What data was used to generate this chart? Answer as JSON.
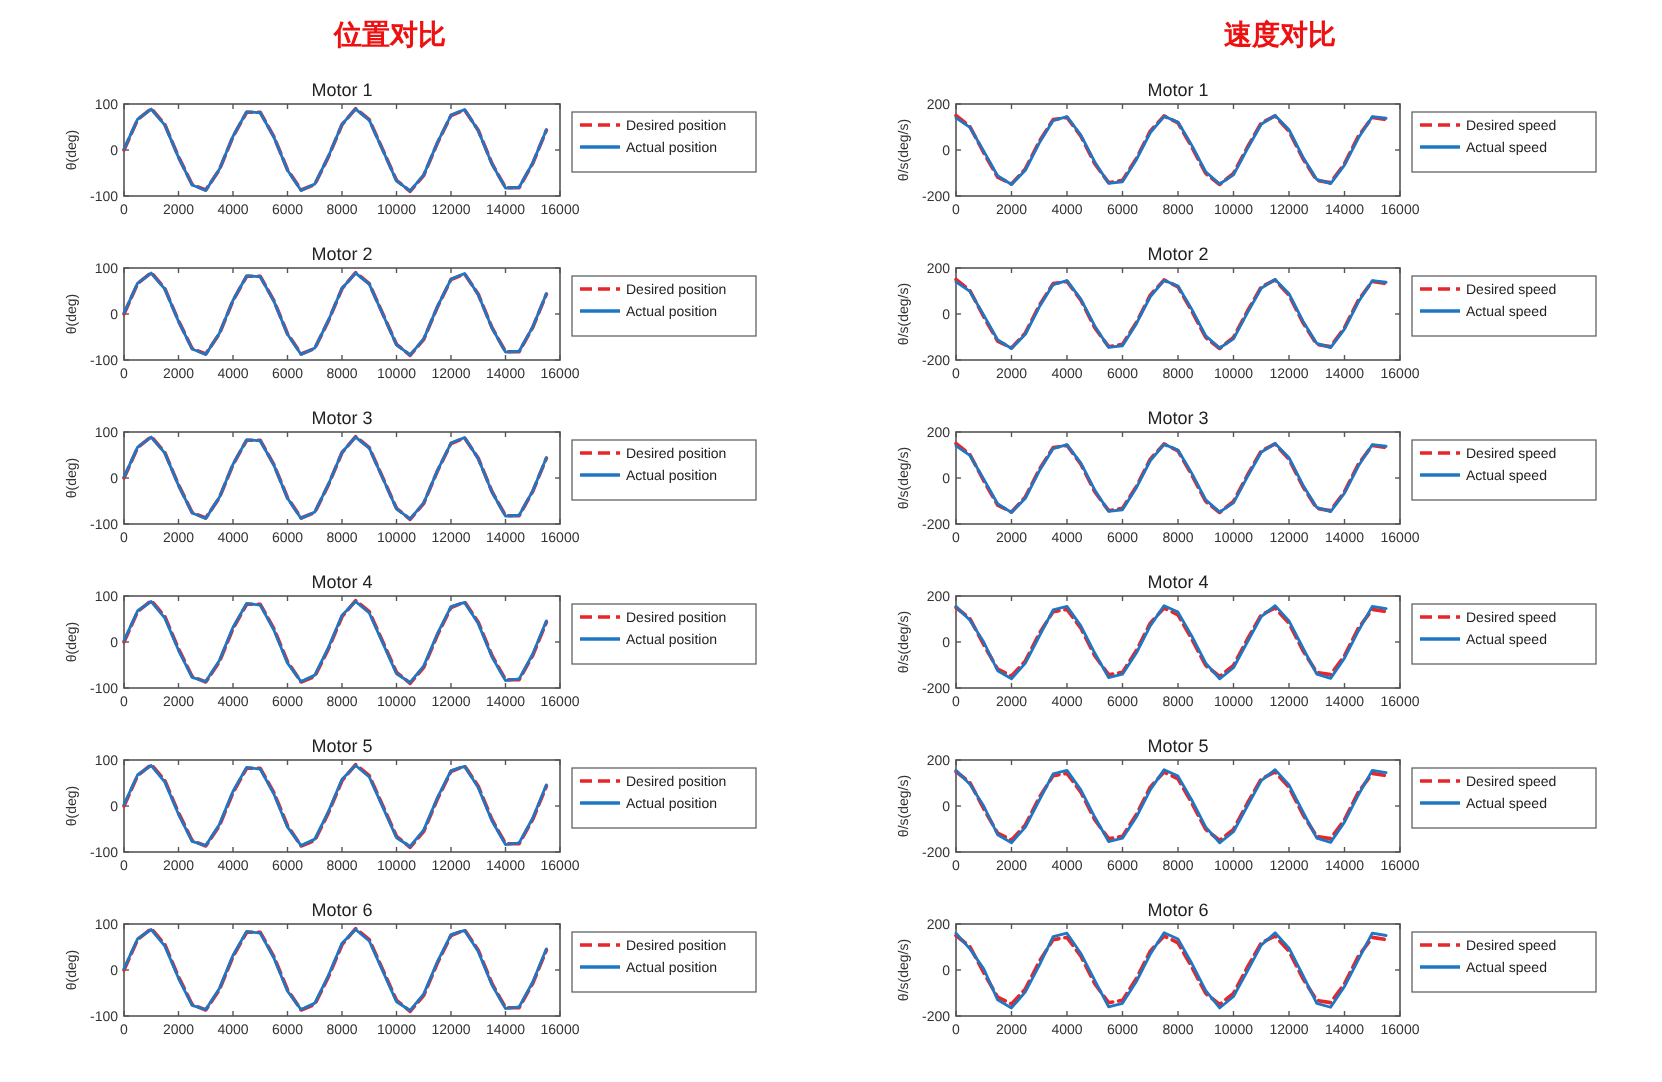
{
  "chart_data": [
    {
      "type": "other",
      "title": "位置对比"
    },
    {
      "type": "other",
      "title": "速度对比"
    },
    {
      "type": "line",
      "title": "Motor 1",
      "ylabel": "θ(deg)",
      "x": [
        0,
        500,
        1000,
        1500,
        2000,
        2500,
        3000,
        3500,
        4000,
        4500,
        5000,
        5500,
        6000,
        6500,
        7000,
        7500,
        8000,
        8500,
        9000,
        9500,
        10000,
        10500,
        11000,
        11500,
        12000,
        12500,
        13000,
        13500,
        14000,
        14500,
        15000,
        15500
      ],
      "xlim": [
        0,
        16000
      ],
      "xticks": [
        0,
        2000,
        4000,
        6000,
        8000,
        10000,
        12000,
        14000,
        16000
      ],
      "ylim": [
        -100,
        100
      ],
      "yticks": [
        -100,
        0,
        100
      ],
      "legend": "right",
      "series": [
        {
          "name": "Desired position",
          "color": "#e8262a",
          "line_style": "dashed",
          "values": [
            0,
            66,
            90,
            55,
            -15,
            -75,
            -87,
            -43,
            29,
            82,
            82,
            29,
            -43,
            -87,
            -75,
            -15,
            55,
            90,
            66,
            0,
            -66,
            -90,
            -55,
            15,
            75,
            87,
            43,
            -29,
            -82,
            -82,
            -29,
            43
          ]
        },
        {
          "name": "Actual position",
          "color": "#1f77c4",
          "line_style": "solid",
          "values": [
            2,
            67,
            89,
            54,
            -16,
            -76,
            -88,
            -42,
            30,
            83,
            81,
            28,
            -44,
            -88,
            -74,
            -14,
            56,
            89,
            65,
            -1,
            -67,
            -89,
            -54,
            16,
            76,
            88,
            42,
            -30,
            -83,
            -81,
            -28,
            44
          ]
        }
      ]
    },
    {
      "type": "line",
      "title": "Motor 1",
      "ylabel": "θ/s(deg/s)",
      "x": [
        0,
        500,
        1000,
        1500,
        2000,
        2500,
        3000,
        3500,
        4000,
        4500,
        5000,
        5500,
        6000,
        6500,
        7000,
        7500,
        8000,
        8500,
        9000,
        9500,
        10000,
        10500,
        11000,
        11500,
        12000,
        12500,
        13000,
        13500,
        14000,
        14500,
        15000,
        15500
      ],
      "xlim": [
        0,
        16000
      ],
      "xticks": [
        0,
        2000,
        4000,
        6000,
        8000,
        10000,
        12000,
        14000,
        16000
      ],
      "ylim": [
        -200,
        200
      ],
      "yticks": [
        -200,
        0,
        200
      ],
      "legend": "right",
      "series": [
        {
          "name": "Desired speed",
          "color": "#e8262a",
          "line_style": "dashed",
          "values": [
            150,
            102,
            -12,
            -118,
            -148,
            -82,
            37,
            132,
            142,
            60,
            -60,
            -142,
            -132,
            -37,
            82,
            148,
            118,
            12,
            -102,
            -150,
            -102,
            12,
            118,
            148,
            82,
            -37,
            -132,
            -142,
            -60,
            60,
            142,
            132
          ]
        },
        {
          "name": "Actual speed",
          "color": "#1f77c4",
          "line_style": "solid",
          "values": [
            140,
            98,
            -5,
            -112,
            -150,
            -88,
            30,
            128,
            145,
            65,
            -52,
            -145,
            -138,
            -42,
            75,
            146,
            122,
            20,
            -95,
            -148,
            -108,
            5,
            112,
            150,
            88,
            -30,
            -128,
            -146,
            -66,
            52,
            145,
            138
          ]
        }
      ]
    },
    {
      "type": "line",
      "title": "Motor 2",
      "ylabel": "θ(deg)",
      "x": [
        0,
        500,
        1000,
        1500,
        2000,
        2500,
        3000,
        3500,
        4000,
        4500,
        5000,
        5500,
        6000,
        6500,
        7000,
        7500,
        8000,
        8500,
        9000,
        9500,
        10000,
        10500,
        11000,
        11500,
        12000,
        12500,
        13000,
        13500,
        14000,
        14500,
        15000,
        15500
      ],
      "xlim": [
        0,
        16000
      ],
      "xticks": [
        0,
        2000,
        4000,
        6000,
        8000,
        10000,
        12000,
        14000,
        16000
      ],
      "ylim": [
        -100,
        100
      ],
      "yticks": [
        -100,
        0,
        100
      ],
      "legend": "right",
      "series": [
        {
          "name": "Desired position",
          "color": "#e8262a",
          "line_style": "dashed",
          "values": [
            0,
            66,
            90,
            55,
            -15,
            -75,
            -87,
            -43,
            29,
            82,
            82,
            29,
            -43,
            -87,
            -75,
            -15,
            55,
            90,
            66,
            0,
            -66,
            -90,
            -55,
            15,
            75,
            87,
            43,
            -29,
            -82,
            -82,
            -29,
            43
          ]
        },
        {
          "name": "Actual position",
          "color": "#1f77c4",
          "line_style": "solid",
          "values": [
            2,
            67,
            89,
            54,
            -16,
            -76,
            -88,
            -42,
            30,
            83,
            81,
            28,
            -44,
            -88,
            -74,
            -14,
            56,
            89,
            65,
            -1,
            -67,
            -89,
            -54,
            16,
            76,
            88,
            42,
            -30,
            -83,
            -81,
            -28,
            44
          ]
        }
      ]
    },
    {
      "type": "line",
      "title": "Motor 2",
      "ylabel": "θ/s(deg/s)",
      "x": [
        0,
        500,
        1000,
        1500,
        2000,
        2500,
        3000,
        3500,
        4000,
        4500,
        5000,
        5500,
        6000,
        6500,
        7000,
        7500,
        8000,
        8500,
        9000,
        9500,
        10000,
        10500,
        11000,
        11500,
        12000,
        12500,
        13000,
        13500,
        14000,
        14500,
        15000,
        15500
      ],
      "xlim": [
        0,
        16000
      ],
      "xticks": [
        0,
        2000,
        4000,
        6000,
        8000,
        10000,
        12000,
        14000,
        16000
      ],
      "ylim": [
        -200,
        200
      ],
      "yticks": [
        -200,
        0,
        200
      ],
      "legend": "right",
      "series": [
        {
          "name": "Desired speed",
          "color": "#e8262a",
          "line_style": "dashed",
          "values": [
            150,
            102,
            -12,
            -118,
            -148,
            -82,
            37,
            132,
            142,
            60,
            -60,
            -142,
            -132,
            -37,
            82,
            148,
            118,
            12,
            -102,
            -150,
            -102,
            12,
            118,
            148,
            82,
            -37,
            -132,
            -142,
            -60,
            60,
            142,
            132
          ]
        },
        {
          "name": "Actual speed",
          "color": "#1f77c4",
          "line_style": "solid",
          "values": [
            140,
            98,
            -5,
            -112,
            -150,
            -88,
            30,
            128,
            145,
            65,
            -52,
            -145,
            -138,
            -42,
            75,
            146,
            122,
            20,
            -95,
            -148,
            -108,
            5,
            112,
            150,
            88,
            -30,
            -128,
            -146,
            -66,
            52,
            145,
            138
          ]
        }
      ]
    },
    {
      "type": "line",
      "title": "Motor 3",
      "ylabel": "θ(deg)",
      "x": [
        0,
        500,
        1000,
        1500,
        2000,
        2500,
        3000,
        3500,
        4000,
        4500,
        5000,
        5500,
        6000,
        6500,
        7000,
        7500,
        8000,
        8500,
        9000,
        9500,
        10000,
        10500,
        11000,
        11500,
        12000,
        12500,
        13000,
        13500,
        14000,
        14500,
        15000,
        15500
      ],
      "xlim": [
        0,
        16000
      ],
      "xticks": [
        0,
        2000,
        4000,
        6000,
        8000,
        10000,
        12000,
        14000,
        16000
      ],
      "ylim": [
        -100,
        100
      ],
      "yticks": [
        -100,
        0,
        100
      ],
      "legend": "right",
      "series": [
        {
          "name": "Desired position",
          "color": "#e8262a",
          "line_style": "dashed",
          "values": [
            0,
            66,
            90,
            55,
            -15,
            -75,
            -87,
            -43,
            29,
            82,
            82,
            29,
            -43,
            -87,
            -75,
            -15,
            55,
            90,
            66,
            0,
            -66,
            -90,
            -55,
            15,
            75,
            87,
            43,
            -29,
            -82,
            -82,
            -29,
            43
          ]
        },
        {
          "name": "Actual position",
          "color": "#1f77c4",
          "line_style": "solid",
          "values": [
            2,
            67,
            89,
            54,
            -16,
            -76,
            -88,
            -42,
            30,
            83,
            81,
            28,
            -44,
            -88,
            -74,
            -14,
            56,
            89,
            65,
            -1,
            -67,
            -89,
            -54,
            16,
            76,
            88,
            42,
            -30,
            -83,
            -81,
            -28,
            44
          ]
        }
      ]
    },
    {
      "type": "line",
      "title": "Motor 3",
      "ylabel": "θ/s(deg/s)",
      "x": [
        0,
        500,
        1000,
        1500,
        2000,
        2500,
        3000,
        3500,
        4000,
        4500,
        5000,
        5500,
        6000,
        6500,
        7000,
        7500,
        8000,
        8500,
        9000,
        9500,
        10000,
        10500,
        11000,
        11500,
        12000,
        12500,
        13000,
        13500,
        14000,
        14500,
        15000,
        15500
      ],
      "xlim": [
        0,
        16000
      ],
      "xticks": [
        0,
        2000,
        4000,
        6000,
        8000,
        10000,
        12000,
        14000,
        16000
      ],
      "ylim": [
        -200,
        200
      ],
      "yticks": [
        -200,
        0,
        200
      ],
      "legend": "right",
      "series": [
        {
          "name": "Desired speed",
          "color": "#e8262a",
          "line_style": "dashed",
          "values": [
            150,
            102,
            -12,
            -118,
            -148,
            -82,
            37,
            132,
            142,
            60,
            -60,
            -142,
            -132,
            -37,
            82,
            148,
            118,
            12,
            -102,
            -150,
            -102,
            12,
            118,
            148,
            82,
            -37,
            -132,
            -142,
            -60,
            60,
            142,
            132
          ]
        },
        {
          "name": "Actual speed",
          "color": "#1f77c4",
          "line_style": "solid",
          "values": [
            140,
            98,
            -5,
            -112,
            -150,
            -88,
            30,
            128,
            145,
            65,
            -52,
            -145,
            -138,
            -42,
            75,
            146,
            122,
            20,
            -95,
            -148,
            -108,
            5,
            112,
            150,
            88,
            -30,
            -128,
            -146,
            -66,
            52,
            145,
            138
          ]
        }
      ]
    },
    {
      "type": "line",
      "title": "Motor 4",
      "ylabel": "θ(deg)",
      "x": [
        0,
        500,
        1000,
        1500,
        2000,
        2500,
        3000,
        3500,
        4000,
        4500,
        5000,
        5500,
        6000,
        6500,
        7000,
        7500,
        8000,
        8500,
        9000,
        9500,
        10000,
        10500,
        11000,
        11500,
        12000,
        12500,
        13000,
        13500,
        14000,
        14500,
        15000,
        15500
      ],
      "xlim": [
        0,
        16000
      ],
      "xticks": [
        0,
        2000,
        4000,
        6000,
        8000,
        10000,
        12000,
        14000,
        16000
      ],
      "ylim": [
        -100,
        100
      ],
      "yticks": [
        -100,
        0,
        100
      ],
      "legend": "right",
      "series": [
        {
          "name": "Desired position",
          "color": "#e8262a",
          "line_style": "dashed",
          "values": [
            0,
            66,
            90,
            55,
            -15,
            -75,
            -87,
            -43,
            29,
            82,
            82,
            29,
            -43,
            -87,
            -75,
            -15,
            55,
            90,
            66,
            0,
            -66,
            -90,
            -55,
            15,
            75,
            87,
            43,
            -29,
            -82,
            -82,
            -29,
            43
          ]
        },
        {
          "name": "Actual position",
          "color": "#1f77c4",
          "line_style": "solid",
          "values": [
            3,
            68,
            88,
            52,
            -18,
            -77,
            -86,
            -40,
            32,
            84,
            80,
            26,
            -46,
            -86,
            -72,
            -12,
            58,
            88,
            63,
            -3,
            -69,
            -88,
            -52,
            18,
            77,
            86,
            40,
            -32,
            -84,
            -80,
            -26,
            46
          ]
        }
      ]
    },
    {
      "type": "line",
      "title": "Motor 4",
      "ylabel": "θ/s(deg/s)",
      "x": [
        0,
        500,
        1000,
        1500,
        2000,
        2500,
        3000,
        3500,
        4000,
        4500,
        5000,
        5500,
        6000,
        6500,
        7000,
        7500,
        8000,
        8500,
        9000,
        9500,
        10000,
        10500,
        11000,
        11500,
        12000,
        12500,
        13000,
        13500,
        14000,
        14500,
        15000,
        15500
      ],
      "xlim": [
        0,
        16000
      ],
      "xticks": [
        0,
        2000,
        4000,
        6000,
        8000,
        10000,
        12000,
        14000,
        16000
      ],
      "ylim": [
        -200,
        200
      ],
      "yticks": [
        -200,
        0,
        200
      ],
      "legend": "right",
      "series": [
        {
          "name": "Desired speed",
          "color": "#e8262a",
          "line_style": "dashed",
          "values": [
            150,
            102,
            -12,
            -118,
            -148,
            -82,
            37,
            132,
            142,
            60,
            -60,
            -142,
            -132,
            -37,
            82,
            148,
            118,
            12,
            -102,
            -150,
            -102,
            12,
            118,
            148,
            82,
            -37,
            -132,
            -142,
            -60,
            60,
            142,
            132
          ]
        },
        {
          "name": "Actual speed",
          "color": "#1f77c4",
          "line_style": "solid",
          "values": [
            155,
            95,
            0,
            -125,
            -160,
            -92,
            25,
            140,
            155,
            70,
            -48,
            -155,
            -140,
            -48,
            70,
            158,
            130,
            25,
            -92,
            -160,
            -112,
            0,
            110,
            158,
            92,
            -25,
            -140,
            -158,
            -70,
            48,
            155,
            145
          ]
        }
      ]
    },
    {
      "type": "line",
      "title": "Motor 5",
      "ylabel": "θ(deg)",
      "x": [
        0,
        500,
        1000,
        1500,
        2000,
        2500,
        3000,
        3500,
        4000,
        4500,
        5000,
        5500,
        6000,
        6500,
        7000,
        7500,
        8000,
        8500,
        9000,
        9500,
        10000,
        10500,
        11000,
        11500,
        12000,
        12500,
        13000,
        13500,
        14000,
        14500,
        15000,
        15500
      ],
      "xlim": [
        0,
        16000
      ],
      "xticks": [
        0,
        2000,
        4000,
        6000,
        8000,
        10000,
        12000,
        14000,
        16000
      ],
      "ylim": [
        -100,
        100
      ],
      "yticks": [
        -100,
        0,
        100
      ],
      "legend": "right",
      "series": [
        {
          "name": "Desired position",
          "color": "#e8262a",
          "line_style": "dashed",
          "values": [
            0,
            66,
            90,
            55,
            -15,
            -75,
            -87,
            -43,
            29,
            82,
            82,
            29,
            -43,
            -87,
            -75,
            -15,
            55,
            90,
            66,
            0,
            -66,
            -90,
            -55,
            15,
            75,
            87,
            43,
            -29,
            -82,
            -82,
            -29,
            43
          ]
        },
        {
          "name": "Actual position",
          "color": "#1f77c4",
          "line_style": "solid",
          "values": [
            3,
            68,
            88,
            52,
            -18,
            -77,
            -86,
            -40,
            32,
            84,
            80,
            26,
            -46,
            -86,
            -72,
            -12,
            58,
            88,
            63,
            -3,
            -69,
            -88,
            -52,
            18,
            77,
            86,
            40,
            -32,
            -84,
            -80,
            -26,
            46
          ]
        }
      ]
    },
    {
      "type": "line",
      "title": "Motor 5",
      "ylabel": "θ/s(deg/s)",
      "x": [
        0,
        500,
        1000,
        1500,
        2000,
        2500,
        3000,
        3500,
        4000,
        4500,
        5000,
        5500,
        6000,
        6500,
        7000,
        7500,
        8000,
        8500,
        9000,
        9500,
        10000,
        10500,
        11000,
        11500,
        12000,
        12500,
        13000,
        13500,
        14000,
        14500,
        15000,
        15500
      ],
      "xlim": [
        0,
        16000
      ],
      "xticks": [
        0,
        2000,
        4000,
        6000,
        8000,
        10000,
        12000,
        14000,
        16000
      ],
      "ylim": [
        -200,
        200
      ],
      "yticks": [
        -200,
        0,
        200
      ],
      "legend": "right",
      "series": [
        {
          "name": "Desired speed",
          "color": "#e8262a",
          "line_style": "dashed",
          "values": [
            150,
            102,
            -12,
            -118,
            -148,
            -82,
            37,
            132,
            142,
            60,
            -60,
            -142,
            -132,
            -37,
            82,
            148,
            118,
            12,
            -102,
            -150,
            -102,
            12,
            118,
            148,
            82,
            -37,
            -132,
            -142,
            -60,
            60,
            142,
            132
          ]
        },
        {
          "name": "Actual speed",
          "color": "#1f77c4",
          "line_style": "solid",
          "values": [
            155,
            95,
            0,
            -125,
            -160,
            -92,
            25,
            140,
            155,
            70,
            -48,
            -155,
            -140,
            -48,
            70,
            158,
            130,
            25,
            -92,
            -160,
            -112,
            0,
            110,
            158,
            92,
            -25,
            -140,
            -158,
            -70,
            48,
            155,
            145
          ]
        }
      ]
    },
    {
      "type": "line",
      "title": "Motor 6",
      "ylabel": "θ(deg)",
      "x": [
        0,
        500,
        1000,
        1500,
        2000,
        2500,
        3000,
        3500,
        4000,
        4500,
        5000,
        5500,
        6000,
        6500,
        7000,
        7500,
        8000,
        8500,
        9000,
        9500,
        10000,
        10500,
        11000,
        11500,
        12000,
        12500,
        13000,
        13500,
        14000,
        14500,
        15000,
        15500
      ],
      "xlim": [
        0,
        16000
      ],
      "xticks": [
        0,
        2000,
        4000,
        6000,
        8000,
        10000,
        12000,
        14000,
        16000
      ],
      "ylim": [
        -100,
        100
      ],
      "yticks": [
        -100,
        0,
        100
      ],
      "legend": "right",
      "series": [
        {
          "name": "Desired position",
          "color": "#e8262a",
          "line_style": "dashed",
          "values": [
            0,
            66,
            90,
            55,
            -15,
            -75,
            -87,
            -43,
            29,
            82,
            82,
            29,
            -43,
            -87,
            -75,
            -15,
            55,
            90,
            66,
            0,
            -66,
            -90,
            -55,
            15,
            75,
            87,
            43,
            -29,
            -82,
            -82,
            -29,
            43
          ]
        },
        {
          "name": "Actual position",
          "color": "#1f77c4",
          "line_style": "solid",
          "values": [
            3,
            68,
            88,
            52,
            -18,
            -77,
            -86,
            -40,
            32,
            84,
            80,
            26,
            -46,
            -86,
            -72,
            -12,
            58,
            88,
            63,
            -3,
            -69,
            -88,
            -52,
            18,
            77,
            86,
            40,
            -32,
            -84,
            -80,
            -26,
            46
          ]
        }
      ]
    },
    {
      "type": "line",
      "title": "Motor 6",
      "ylabel": "θ/s(deg/s)",
      "x": [
        0,
        500,
        1000,
        1500,
        2000,
        2500,
        3000,
        3500,
        4000,
        4500,
        5000,
        5500,
        6000,
        6500,
        7000,
        7500,
        8000,
        8500,
        9000,
        9500,
        10000,
        10500,
        11000,
        11500,
        12000,
        12500,
        13000,
        13500,
        14000,
        14500,
        15000,
        15500
      ],
      "xlim": [
        0,
        16000
      ],
      "xticks": [
        0,
        2000,
        4000,
        6000,
        8000,
        10000,
        12000,
        14000,
        16000
      ],
      "ylim": [
        -200,
        200
      ],
      "yticks": [
        -200,
        0,
        200
      ],
      "legend": "right",
      "series": [
        {
          "name": "Desired speed",
          "color": "#e8262a",
          "line_style": "dashed",
          "values": [
            150,
            102,
            -12,
            -118,
            -148,
            -82,
            37,
            132,
            142,
            60,
            -60,
            -142,
            -132,
            -37,
            82,
            148,
            118,
            12,
            -102,
            -150,
            -102,
            12,
            118,
            148,
            82,
            -37,
            -132,
            -142,
            -60,
            60,
            142,
            132
          ]
        },
        {
          "name": "Actual speed",
          "color": "#1f77c4",
          "line_style": "solid",
          "values": [
            160,
            92,
            5,
            -130,
            -165,
            -95,
            20,
            145,
            160,
            72,
            -45,
            -160,
            -145,
            -50,
            68,
            162,
            135,
            28,
            -90,
            -165,
            -115,
            -5,
            108,
            162,
            95,
            -22,
            -145,
            -162,
            -72,
            45,
            160,
            150
          ]
        }
      ]
    }
  ]
}
